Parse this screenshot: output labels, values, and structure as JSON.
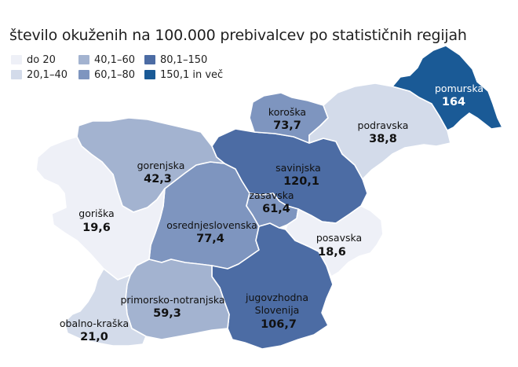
{
  "title": "število okuženih na 100.000 prebivalcev po statističnih regijah",
  "legend": [
    {
      "label": "do 20",
      "color": "#eef0f7"
    },
    {
      "label": "20,1–40",
      "color": "#d3dbea"
    },
    {
      "label": "40,1–60",
      "color": "#a3b3d0"
    },
    {
      "label": "60,1–80",
      "color": "#7e95bf"
    },
    {
      "label": "80,1–150",
      "color": "#4c6ca4"
    },
    {
      "label": "150,1 in več",
      "color": "#1a5a96"
    }
  ],
  "regions": [
    {
      "id": "pomurska",
      "name": "pomurska",
      "value": "164",
      "color": "#1a5a96",
      "text_color": "#ffffff"
    },
    {
      "id": "podravska",
      "name": "podravska",
      "value": "38,8",
      "color": "#d3dbea",
      "text_color": "#111111"
    },
    {
      "id": "koroska",
      "name": "koroška",
      "value": "73,7",
      "color": "#7e95bf",
      "text_color": "#111111"
    },
    {
      "id": "savinjska",
      "name": "savinjska",
      "value": "120,1",
      "color": "#4c6ca4",
      "text_color": "#111111"
    },
    {
      "id": "zasavska",
      "name": "zasavska",
      "value": "61,4",
      "color": "#7e95bf",
      "text_color": "#111111"
    },
    {
      "id": "posavska",
      "name": "posavska",
      "value": "18,6",
      "color": "#eef0f7",
      "text_color": "#111111"
    },
    {
      "id": "jugovzhodna",
      "name": "jugovzhodna Slovenija",
      "name_lines": [
        "jugovzhodna",
        "Slovenija"
      ],
      "value": "106,7",
      "color": "#4c6ca4",
      "text_color": "#111111"
    },
    {
      "id": "osrednjeslovenska",
      "name": "osrednjeslovenska",
      "value": "77,4",
      "color": "#7e95bf",
      "text_color": "#111111"
    },
    {
      "id": "gorenjska",
      "name": "gorenjska",
      "value": "42,3",
      "color": "#a3b3d0",
      "text_color": "#111111"
    },
    {
      "id": "goriska",
      "name": "goriška",
      "value": "19,6",
      "color": "#eef0f7",
      "text_color": "#111111"
    },
    {
      "id": "primorsko-notranjska",
      "name": "primorsko-notranjska",
      "value": "59,3",
      "color": "#a3b3d0",
      "text_color": "#111111"
    },
    {
      "id": "obalno-kraska",
      "name": "obalno-kraška",
      "value": "21,0",
      "color": "#d3dbea",
      "text_color": "#111111"
    }
  ]
}
